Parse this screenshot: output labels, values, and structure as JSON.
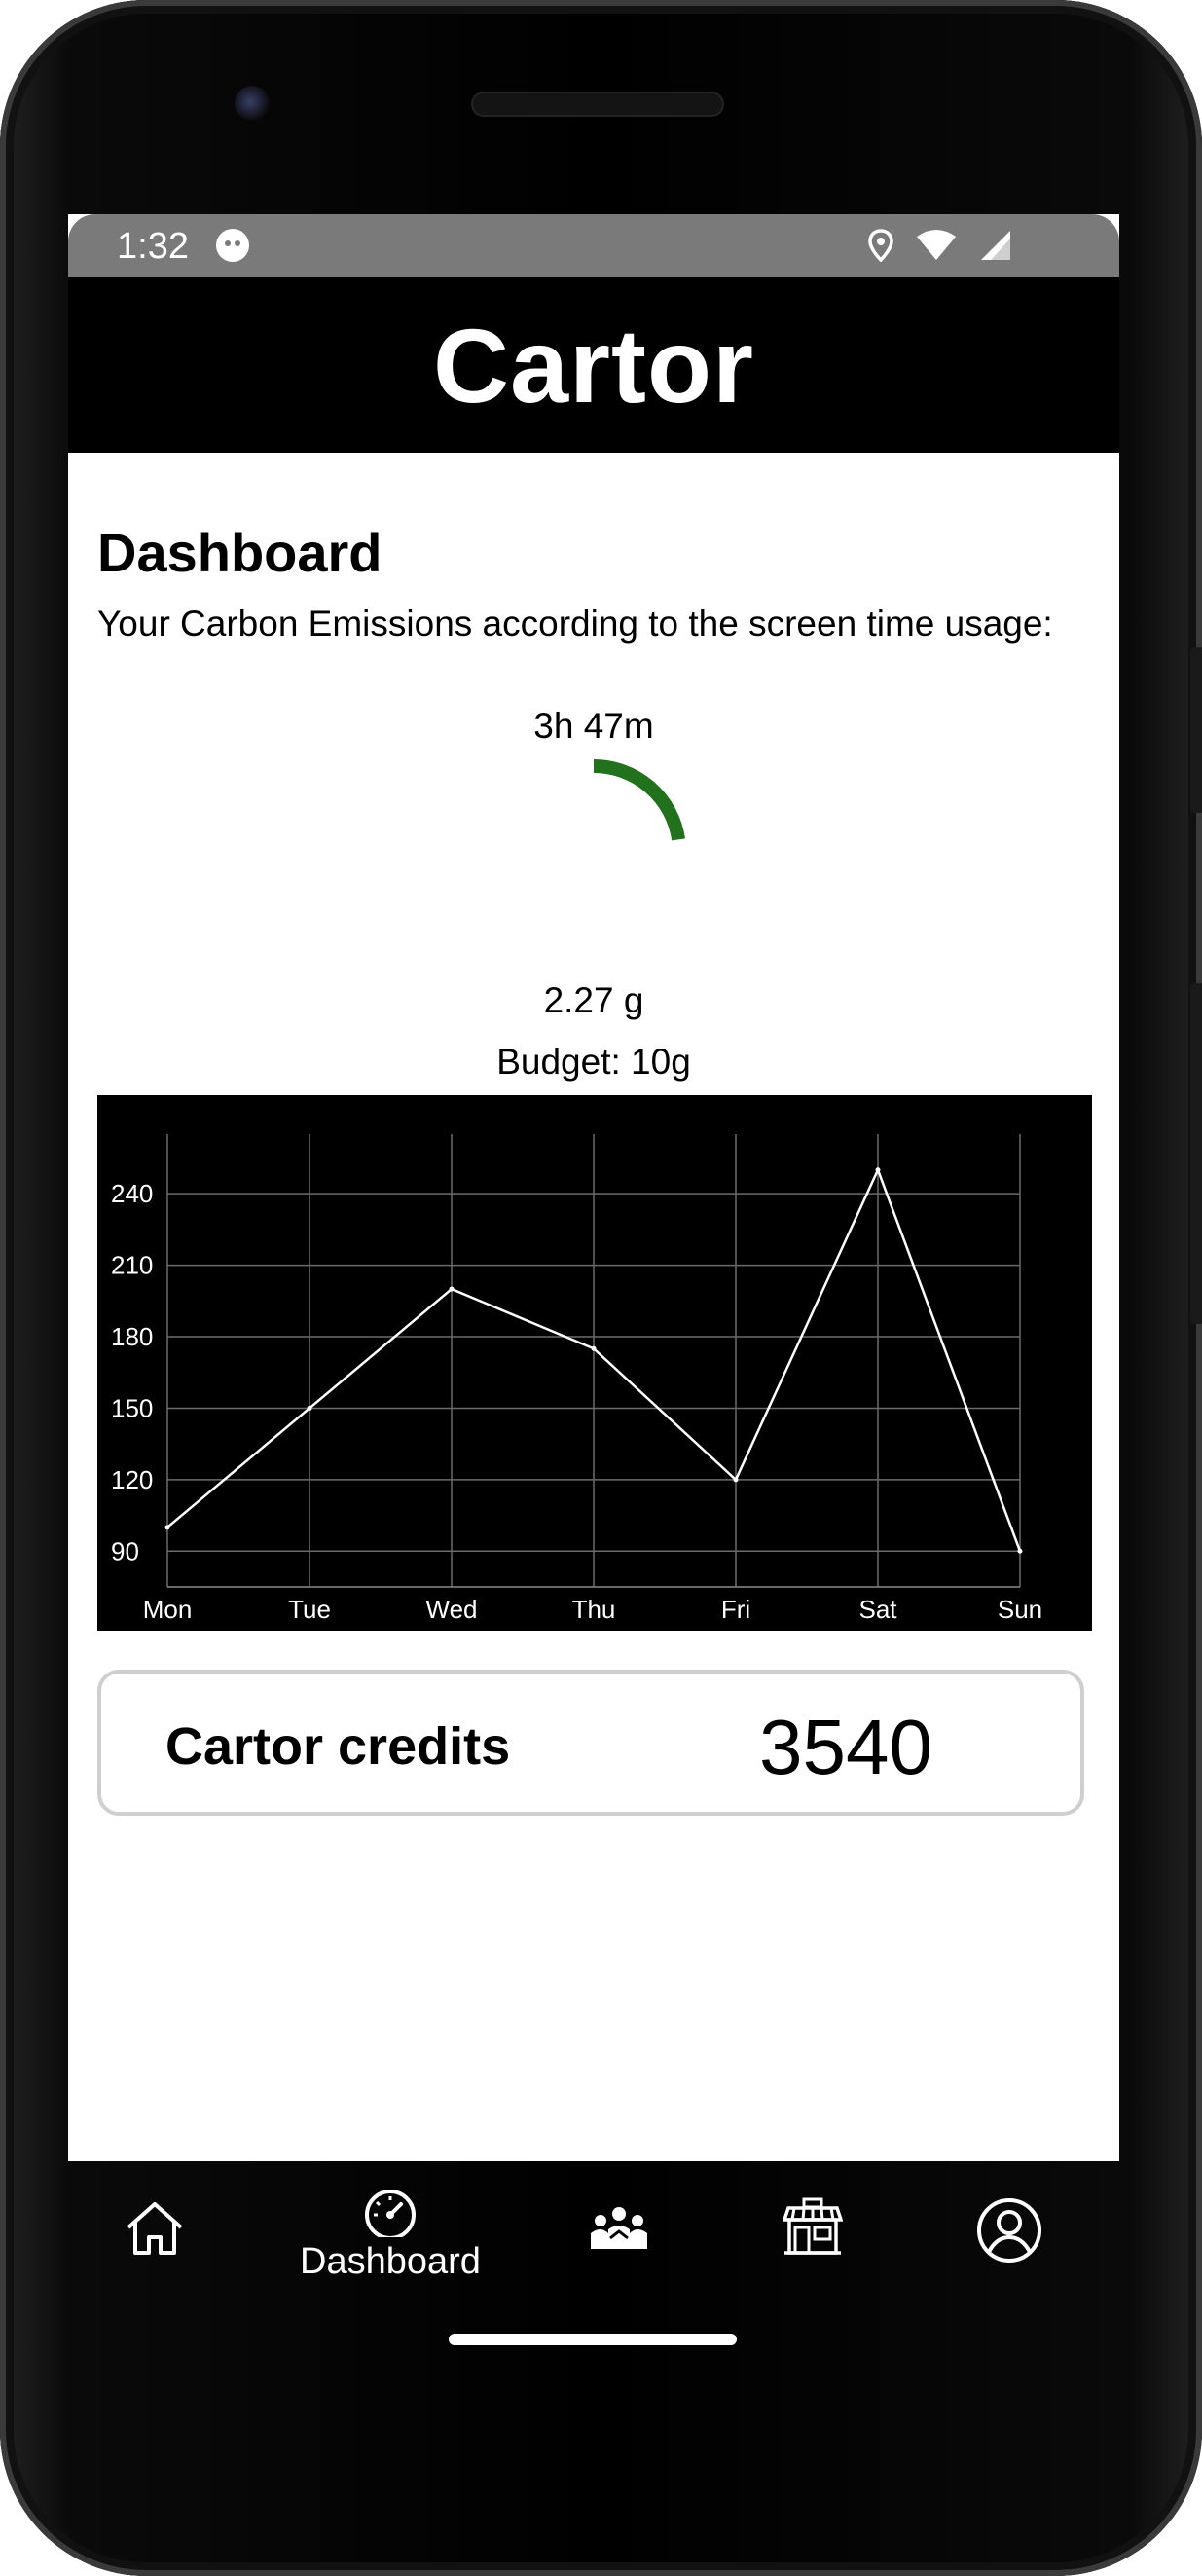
{
  "status": {
    "time": "1:32"
  },
  "app": {
    "title": "Cartor"
  },
  "dashboard": {
    "title": "Dashboard",
    "description": "Your Carbon Emissions according to the screen time usage:",
    "screen_time": "3h 47m",
    "emissions": "2.27 g",
    "budget": "Budget: 10g",
    "gauge_fraction": 0.227,
    "gauge_color": "#22721d"
  },
  "chart_data": {
    "type": "line",
    "categories": [
      "Mon",
      "Tue",
      "Wed",
      "Thu",
      "Fri",
      "Sat",
      "Sun"
    ],
    "values": [
      100,
      150,
      200,
      175,
      120,
      250,
      90
    ],
    "yticks": [
      90,
      120,
      150,
      180,
      210,
      240
    ],
    "ylim": [
      75,
      265
    ],
    "grid": true,
    "background": "#000000",
    "line_color": "#ffffff"
  },
  "credits": {
    "label": "Cartor credits",
    "value": "3540"
  },
  "nav": {
    "items": [
      {
        "icon": "home-icon",
        "label": ""
      },
      {
        "icon": "dashboard-gauge-icon",
        "label": "Dashboard"
      },
      {
        "icon": "community-icon",
        "label": ""
      },
      {
        "icon": "store-icon",
        "label": ""
      },
      {
        "icon": "profile-icon",
        "label": ""
      }
    ],
    "active_index": 1
  }
}
